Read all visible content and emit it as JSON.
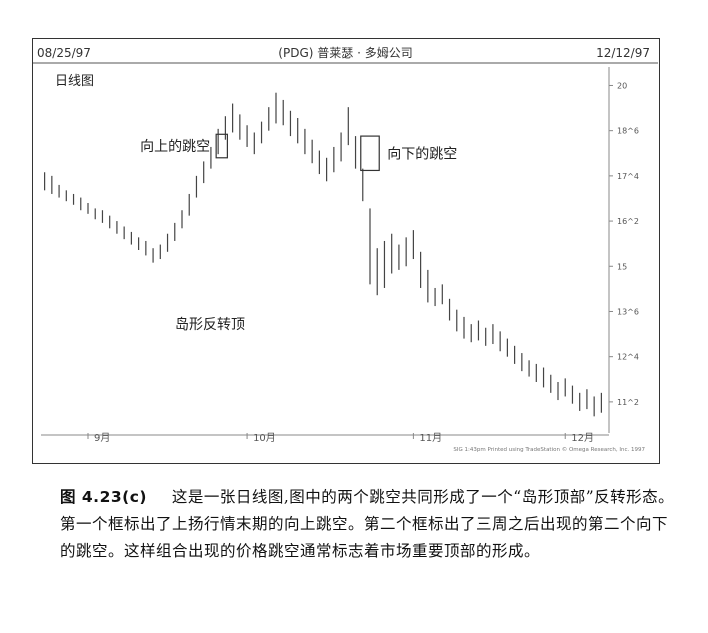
{
  "chart_data": {
    "type": "candlestick",
    "title": "(PDG) 普莱瑟 · 多姆公司",
    "start_date": "08/25/97",
    "end_date": "12/12/97",
    "subtitle": "日线图",
    "y_ticks": [
      "20",
      "18^6",
      "17^4",
      "16^2",
      "15",
      "13^6",
      "12^4",
      "11^2"
    ],
    "y_tick_values": [
      20,
      18.75,
      17.5,
      16.25,
      15,
      13.75,
      12.5,
      11.25
    ],
    "ylim": [
      10.5,
      20.4
    ],
    "x_ticks": [
      "9月",
      "10月",
      "11月",
      "12月"
    ],
    "x_tick_positions": [
      6,
      28,
      51,
      72
    ],
    "annotations": [
      {
        "text": "向上的跳空",
        "box": {
          "start": 24,
          "end": 25,
          "low": 18.0,
          "high": 18.65
        }
      },
      {
        "text": "向下的跳空",
        "box": {
          "start": 44,
          "end": 46,
          "low": 17.65,
          "high": 18.6
        }
      },
      {
        "text": "岛形反转顶"
      }
    ],
    "footer_note": "SIG 1:43pm Printed using TradeStation © Omega Research, Inc. 1997",
    "bars": [
      {
        "high": 17.6,
        "low": 17.1
      },
      {
        "high": 17.5,
        "low": 17.0
      },
      {
        "high": 17.25,
        "low": 16.9
      },
      {
        "high": 17.1,
        "low": 16.8
      },
      {
        "high": 17.0,
        "low": 16.7
      },
      {
        "high": 16.9,
        "low": 16.55
      },
      {
        "high": 16.75,
        "low": 16.45
      },
      {
        "high": 16.6,
        "low": 16.3
      },
      {
        "high": 16.55,
        "low": 16.2
      },
      {
        "high": 16.4,
        "low": 16.05
      },
      {
        "high": 16.25,
        "low": 15.9
      },
      {
        "high": 16.1,
        "low": 15.75
      },
      {
        "high": 15.95,
        "low": 15.6
      },
      {
        "high": 15.8,
        "low": 15.45
      },
      {
        "high": 15.7,
        "low": 15.3
      },
      {
        "high": 15.5,
        "low": 15.1
      },
      {
        "high": 15.6,
        "low": 15.2
      },
      {
        "high": 15.9,
        "low": 15.4
      },
      {
        "high": 16.2,
        "low": 15.7
      },
      {
        "high": 16.55,
        "low": 16.05
      },
      {
        "high": 17.0,
        "low": 16.4
      },
      {
        "high": 17.5,
        "low": 16.9
      },
      {
        "high": 17.9,
        "low": 17.3
      },
      {
        "high": 18.3,
        "low": 17.7
      },
      {
        "high": 18.8,
        "low": 18.1
      },
      {
        "high": 19.15,
        "low": 18.5
      },
      {
        "high": 19.5,
        "low": 18.7
      },
      {
        "high": 19.2,
        "low": 18.5
      },
      {
        "high": 18.9,
        "low": 18.3
      },
      {
        "high": 18.7,
        "low": 18.1
      },
      {
        "high": 19.0,
        "low": 18.4
      },
      {
        "high": 19.4,
        "low": 18.75
      },
      {
        "high": 19.8,
        "low": 18.95
      },
      {
        "high": 19.6,
        "low": 18.9
      },
      {
        "high": 19.3,
        "low": 18.6
      },
      {
        "high": 19.1,
        "low": 18.4
      },
      {
        "high": 18.8,
        "low": 18.1
      },
      {
        "high": 18.5,
        "low": 17.85
      },
      {
        "high": 18.2,
        "low": 17.55
      },
      {
        "high": 18.0,
        "low": 17.35
      },
      {
        "high": 18.3,
        "low": 17.6
      },
      {
        "high": 18.7,
        "low": 17.9
      },
      {
        "high": 19.4,
        "low": 18.35
      },
      {
        "high": 18.6,
        "low": 17.7
      },
      {
        "high": 17.7,
        "low": 16.8
      },
      {
        "high": 16.6,
        "low": 14.5
      },
      {
        "high": 15.5,
        "low": 14.2
      },
      {
        "high": 15.7,
        "low": 14.4
      },
      {
        "high": 15.9,
        "low": 14.8
      },
      {
        "high": 15.6,
        "low": 14.9
      },
      {
        "high": 15.8,
        "low": 15.0
      },
      {
        "high": 16.0,
        "low": 15.2
      },
      {
        "high": 15.4,
        "low": 14.4
      },
      {
        "high": 14.9,
        "low": 14.0
      },
      {
        "high": 14.4,
        "low": 13.9
      },
      {
        "high": 14.5,
        "low": 13.95
      },
      {
        "high": 14.1,
        "low": 13.5
      },
      {
        "high": 13.8,
        "low": 13.2
      },
      {
        "high": 13.6,
        "low": 13.0
      },
      {
        "high": 13.4,
        "low": 12.9
      },
      {
        "high": 13.5,
        "low": 12.95
      },
      {
        "high": 13.3,
        "low": 12.8
      },
      {
        "high": 13.4,
        "low": 12.85
      },
      {
        "high": 13.2,
        "low": 12.65
      },
      {
        "high": 13.0,
        "low": 12.5
      },
      {
        "high": 12.8,
        "low": 12.3
      },
      {
        "high": 12.6,
        "low": 12.1
      },
      {
        "high": 12.4,
        "low": 11.95
      },
      {
        "high": 12.3,
        "low": 11.8
      },
      {
        "high": 12.2,
        "low": 11.65
      },
      {
        "high": 12.0,
        "low": 11.5
      },
      {
        "high": 11.8,
        "low": 11.3
      },
      {
        "high": 11.9,
        "low": 11.4
      },
      {
        "high": 11.7,
        "low": 11.2
      },
      {
        "high": 11.5,
        "low": 11.0
      },
      {
        "high": 11.6,
        "low": 11.05
      },
      {
        "high": 11.4,
        "low": 10.85
      },
      {
        "high": 11.5,
        "low": 10.95
      }
    ]
  },
  "caption": {
    "label": "图 4.23(c)",
    "text": "这是一张日线图,图中的两个跳空共同形成了一个“岛形顶部”反转形态。第一个框标出了上扬行情末期的向上跳空。第二个框标出了三周之后出现的第二个向下的跳空。这样组合出现的价格跳空通常标志着市场重要顶部的形成。"
  }
}
